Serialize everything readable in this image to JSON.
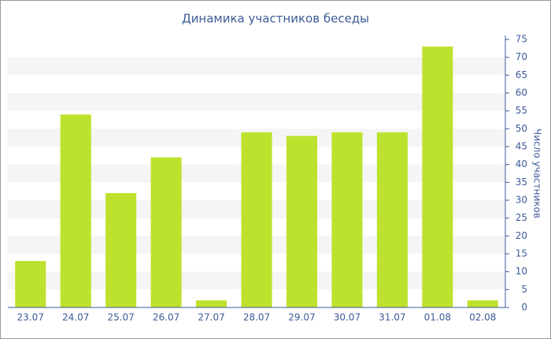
{
  "chart_data": {
    "type": "bar",
    "title": "Динамика участников беседы",
    "y_label": "Число участников",
    "categories": [
      "23.07",
      "24.07",
      "25.07",
      "26.07",
      "27.07",
      "28.07",
      "29.07",
      "30.07",
      "31.07",
      "01.08",
      "02.08"
    ],
    "values": [
      13,
      54,
      32,
      42,
      2,
      49,
      48,
      49,
      49,
      73,
      2
    ],
    "color": "#bde22e",
    "ylim": [
      0,
      75
    ],
    "yticks": [
      0,
      5,
      10,
      15,
      20,
      25,
      30,
      35,
      40,
      45,
      50,
      55,
      60,
      65,
      70,
      75
    ],
    "grid": true
  }
}
